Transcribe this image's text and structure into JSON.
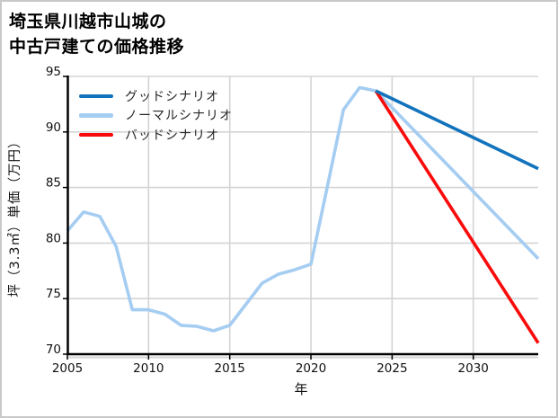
{
  "chart_data": {
    "type": "line",
    "title": "埼玉県川越市山城の中古戸建ての価格推移",
    "title_lines": [
      "埼玉県川越市山城の",
      "中古戸建ての価格推移"
    ],
    "xlabel": "年",
    "ylabel": "坪（3.3㎡）単価（万円）",
    "xlim": [
      2005,
      2034
    ],
    "ylim": [
      70,
      95
    ],
    "xticks": [
      2005,
      2010,
      2015,
      2020,
      2025,
      2030
    ],
    "yticks": [
      70,
      75,
      80,
      85,
      90,
      95
    ],
    "grid": true,
    "legend_position": "upper-left",
    "colors": {
      "good": "#1273bd",
      "normal": "#a5cdf2",
      "bad": "#f90b0b",
      "gridline": "#d4d4d4",
      "axis": "#000000",
      "tick_text": "#111111"
    },
    "series": [
      {
        "name": "グッドシナリオ",
        "key": "good",
        "color": "#1273bd",
        "x": [
          2024,
          2034
        ],
        "y": [
          93.7,
          86.7
        ]
      },
      {
        "name": "ノーマルシナリオ",
        "key": "normal",
        "color": "#a5cdf2",
        "x": [
          2005,
          2006,
          2007,
          2008,
          2009,
          2010,
          2011,
          2012,
          2013,
          2014,
          2015,
          2016,
          2017,
          2018,
          2019,
          2020,
          2021,
          2022,
          2023,
          2024,
          2034
        ],
        "y": [
          81.1,
          82.8,
          82.4,
          79.7,
          74.0,
          74.0,
          73.6,
          72.6,
          72.5,
          72.1,
          72.6,
          74.5,
          76.4,
          77.2,
          77.6,
          78.1,
          85.0,
          92.0,
          94.0,
          93.7,
          78.6
        ]
      },
      {
        "name": "バッドシナリオ",
        "key": "bad",
        "color": "#f90b0b",
        "x": [
          2024,
          2034
        ],
        "y": [
          93.7,
          71.0
        ]
      }
    ]
  }
}
